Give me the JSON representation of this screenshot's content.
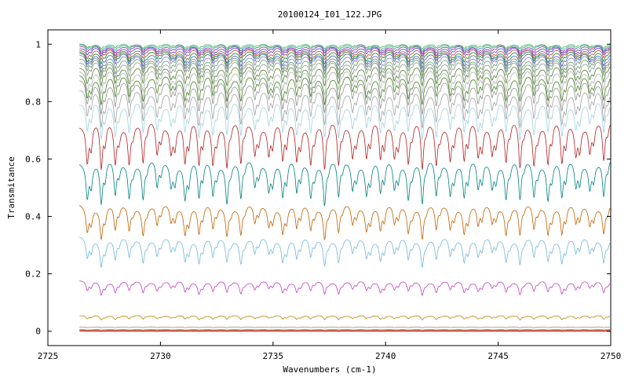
{
  "chart_data": {
    "type": "line",
    "title": "20100124_I01_122.JPG",
    "xlabel": "Wavenumbers (cm-1)",
    "ylabel": "Transmitance",
    "xlim": [
      2725,
      2750
    ],
    "ylim": [
      -0.05,
      1.05
    ],
    "x_data_range": [
      2726.4,
      2750
    ],
    "xticks": [
      2725,
      2730,
      2735,
      2740,
      2745,
      2750
    ],
    "xtick_labels": [
      "2725",
      "2730",
      "2735",
      "2740",
      "2745",
      "2750"
    ],
    "yticks": [
      0,
      0.2,
      0.4,
      0.6,
      0.8,
      1
    ],
    "ytick_labels": [
      "0",
      "0.2",
      "0.4",
      "0.6",
      "0.8",
      "1"
    ],
    "grid": false,
    "legend": "none",
    "line_spacing_cm1": 0.62,
    "series": [
      {
        "baseline": 0.0,
        "depth": 0.001,
        "color": "#e03020"
      },
      {
        "baseline": 0.002,
        "depth": 0.001,
        "color": "#d04040"
      },
      {
        "baseline": 0.004,
        "depth": 0.002,
        "color": "#c06040"
      },
      {
        "baseline": 0.006,
        "depth": 0.002,
        "color": "#a08060"
      },
      {
        "baseline": 0.015,
        "depth": 0.003,
        "color": "#909090"
      },
      {
        "baseline": 0.055,
        "depth": 0.015,
        "color": "#c08000"
      },
      {
        "baseline": 0.175,
        "depth": 0.045,
        "color": "#c040c0"
      },
      {
        "baseline": 0.325,
        "depth": 0.09,
        "color": "#70b8d8"
      },
      {
        "baseline": 0.44,
        "depth": 0.11,
        "color": "#c06000"
      },
      {
        "baseline": 0.595,
        "depth": 0.15,
        "color": "#008080"
      },
      {
        "baseline": 0.73,
        "depth": 0.17,
        "color": "#b02020"
      },
      {
        "baseline": 0.8,
        "depth": 0.13,
        "color": "#a0d0e0"
      },
      {
        "baseline": 0.84,
        "depth": 0.12,
        "color": "#a0a0a0"
      },
      {
        "baseline": 0.87,
        "depth": 0.1,
        "color": "#909090"
      },
      {
        "baseline": 0.89,
        "depth": 0.09,
        "color": "#408020"
      },
      {
        "baseline": 0.91,
        "depth": 0.08,
        "color": "#b0b0b0"
      },
      {
        "baseline": 0.925,
        "depth": 0.07,
        "color": "#508030"
      },
      {
        "baseline": 0.94,
        "depth": 0.06,
        "color": "#909090"
      },
      {
        "baseline": 0.95,
        "depth": 0.055,
        "color": "#60a060"
      },
      {
        "baseline": 0.96,
        "depth": 0.05,
        "color": "#8080a0"
      },
      {
        "baseline": 0.968,
        "depth": 0.045,
        "color": "#4060c0"
      },
      {
        "baseline": 0.975,
        "depth": 0.04,
        "color": "#208020"
      },
      {
        "baseline": 0.982,
        "depth": 0.035,
        "color": "#c04040"
      },
      {
        "baseline": 0.988,
        "depth": 0.03,
        "color": "#4040c0"
      },
      {
        "baseline": 0.993,
        "depth": 0.025,
        "color": "#a020a0"
      },
      {
        "baseline": 0.997,
        "depth": 0.02,
        "color": "#20a0a0"
      },
      {
        "baseline": 1.0,
        "depth": 0.015,
        "color": "#40b040"
      }
    ]
  }
}
